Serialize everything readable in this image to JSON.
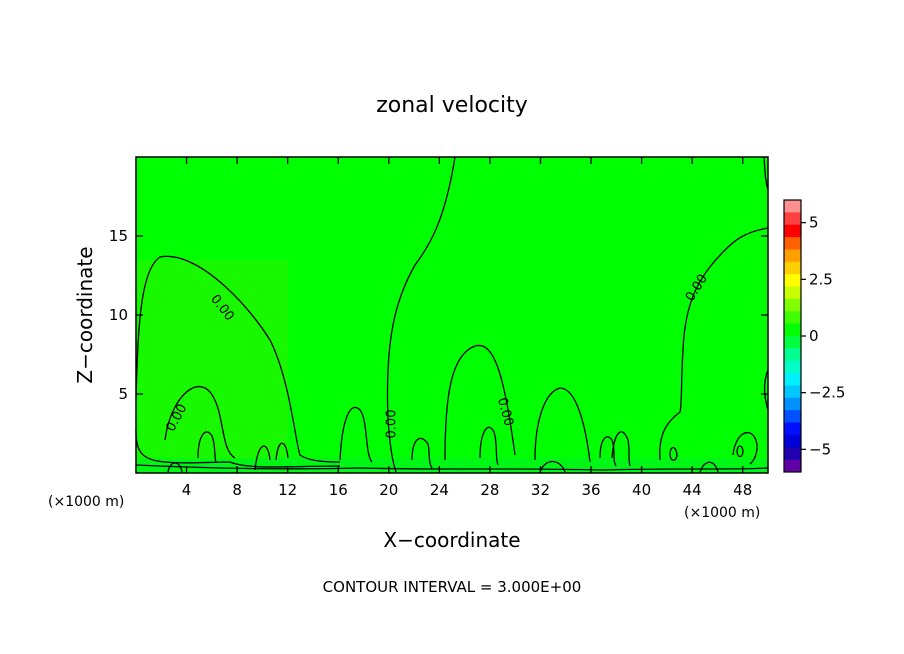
{
  "chart_data": {
    "type": "heatmap",
    "title": "zonal velocity",
    "xlabel": "X−coordinate",
    "ylabel": "Z−coordinate",
    "x_unit_left": "(×1000 m)",
    "x_unit_right": "(×1000 m)",
    "footer": "CONTOUR INTERVAL = 3.000E+00",
    "xlim": [
      0,
      50
    ],
    "ylim": [
      0,
      20
    ],
    "x_ticks": [
      4,
      8,
      12,
      16,
      20,
      24,
      28,
      32,
      36,
      40,
      44,
      48
    ],
    "y_ticks": [
      5,
      10,
      15
    ],
    "field_value": 0,
    "contour_labels": [
      "0.00",
      "0.00",
      "0.00",
      "0.00",
      "0.00"
    ],
    "colorbar": {
      "range": [
        -6,
        6
      ],
      "tick_values": [
        5,
        2.5,
        0,
        -2.5,
        -5
      ],
      "tick_labels": [
        "5",
        "2.5",
        "0",
        "−2.5",
        "−5"
      ],
      "colors": [
        "#ff9090",
        "#ff4040",
        "#ff0000",
        "#ff6000",
        "#ffa000",
        "#ffd000",
        "#ffff00",
        "#c8ff00",
        "#80ff00",
        "#40ff00",
        "#00ff00",
        "#00ff40",
        "#00ff90",
        "#00ffc8",
        "#00f0ff",
        "#00c8ff",
        "#0090ff",
        "#0050ff",
        "#0010ff",
        "#0000d8",
        "#2000b0",
        "#6000a8"
      ]
    }
  }
}
